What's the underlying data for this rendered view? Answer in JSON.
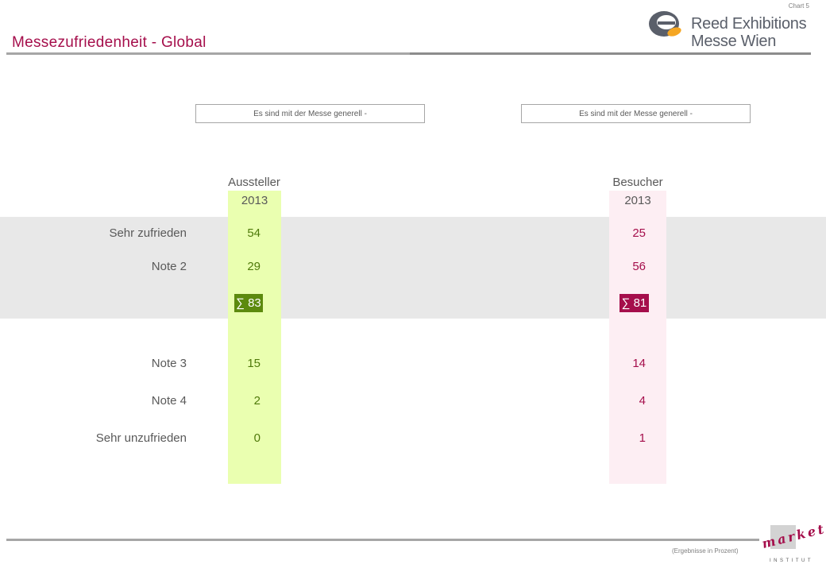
{
  "chart_number": "Chart 5",
  "logo": {
    "line1": "Reed Exhibitions",
    "line2": "Messe Wien"
  },
  "title": "Messezufriedenheit - Global",
  "question_left": "Es sind mit der Messe generell -",
  "question_right": "Es sind mit der Messe generell -",
  "colors": {
    "title": "#a50e4b",
    "aussteller_bg": "#eaffb0",
    "aussteller_accent": "#5c8a0e",
    "besucher_bg": "#fdeef3",
    "besucher_accent": "#a50e4b",
    "band": "#e8e8e8"
  },
  "chart_data": {
    "type": "table",
    "rows": [
      "Sehr zufrieden",
      "Note 2",
      "Note 3",
      "Note 4",
      "Sehr unzufrieden"
    ],
    "columns": [
      {
        "name": "Aussteller",
        "year": "2013",
        "values": [
          "54",
          "29",
          "15",
          "2",
          "0"
        ],
        "sum_label": "∑ 83"
      },
      {
        "name": "Besucher",
        "year": "2013",
        "values": [
          "25",
          "56",
          "14",
          "4",
          "1"
        ],
        "sum_label": "∑ 81"
      }
    ]
  },
  "footer_note": "(Ergebnisse in Prozent)",
  "market_logo": {
    "word": "market",
    "sub": "INSTITUT"
  }
}
